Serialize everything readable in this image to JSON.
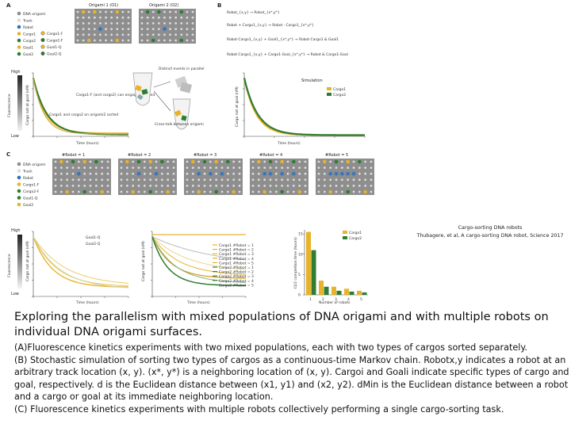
{
  "panel_a": {
    "letter": "A",
    "grid_titles": [
      "Origami 1 (O1)",
      "Origami 2 (O2)"
    ],
    "legend_left": [
      "DNA origami",
      "Track",
      "Robot",
      "Cargo1",
      "Cargo2",
      "Goal1",
      "Goal2"
    ],
    "legend_right": [
      "Cargo1-F",
      "Cargo2-F",
      "Goal1-Q",
      "Goal2-Q"
    ],
    "y_axis_label": "Cargo not at goal (nM)",
    "fluor_label": "Fluorescence",
    "fluor_high": "High",
    "fluor_low": "Low",
    "annot_1": "Cargo1-F (and cargo2) can engage & sorted",
    "annot_2": "Cargo1 and cargo2 on origami2 sorted",
    "annot_tube_1": "Distinct events in parallel",
    "annot_tube_2": "Cross-talk between origami",
    "xlabel": "Time (hours)"
  },
  "panel_b": {
    "letter": "B",
    "equations": [
      "Robot_{x,y} → Robot_{x*,y*}",
      "Robot + Cargo1_{x,y} → Robot · Cargo1_{x*,y*}",
      "Robot·Cargo1_{x,y} + Goal1_{x*,y*} → Robot·Cargo1 & Goal1",
      "Robot·Cargo1_{x,y} + Cargo1·Goal_{x*,y*} → Robot & Cargo1·Goal"
    ],
    "sim_label": "Simulation",
    "legend": [
      "Cargo1",
      "Cargo2"
    ],
    "ylabel": "Cargo not at goal (nM)",
    "xlabel": "Time (hours)"
  },
  "panel_c": {
    "letter": "C",
    "legend": [
      "DNA origami",
      "Track",
      "Robot",
      "Cargo1-F",
      "Cargo2-F",
      "Goal1-Q",
      "Goal2"
    ],
    "grid_titles": [
      "#Robot = 1",
      "#Robot = 2",
      "#Robot = 3",
      "#Robot = 4",
      "#Robot = 5"
    ],
    "fluor_label": "Fluorescence",
    "fluor_high": "High",
    "fluor_low": "Low",
    "left_plot_legend": [
      "Goal1-Q",
      "Goal2-Q"
    ],
    "mid_plot_legend": [
      "Cargo1 #Robot = 1",
      "Cargo1 #Robot = 2",
      "Cargo1 #Robot = 3",
      "Cargo1 #Robot = 4",
      "Cargo1 #Robot = 5",
      "Cargo2 #Robot = 1",
      "Cargo2 #Robot = 2",
      "Cargo2 #Robot = 3",
      "Cargo2 #Robot = 4",
      "Cargo2 #Robot = 5"
    ],
    "bar_legend": [
      "Cargo1",
      "Cargo2"
    ],
    "bar_ylabel": "t1/2 completion time (hours)",
    "bar_xlabel": "Number of robots",
    "bar_xticks": [
      "1",
      "2",
      "3",
      "4",
      "5"
    ],
    "bar_yticks": [
      "0",
      "5",
      "10",
      "15"
    ],
    "ylabel": "Cargo not at goal (nM)",
    "xlabel": "Time (hours)"
  },
  "colors": {
    "cargo1": "#e8b32a",
    "cargo2": "#2e7d32",
    "robot": "#2d6fbf",
    "grid": "#8e8e8e",
    "track": "#dcdcdc"
  },
  "chart_data": [
    {
      "type": "bar",
      "title": "",
      "categories": [
        "1",
        "2",
        "3",
        "4",
        "5"
      ],
      "series": [
        {
          "name": "Cargo1",
          "values": [
            15.5,
            3.5,
            2.0,
            1.5,
            1.0
          ]
        },
        {
          "name": "Cargo2",
          "values": [
            11.0,
            2.0,
            1.0,
            0.8,
            0.6
          ]
        }
      ],
      "xlabel": "Number of robots",
      "ylabel": "t1/2 completion time (hours)",
      "ylim": [
        0,
        16
      ]
    }
  ],
  "credit": {
    "line1": "Cargo-sorting DNA robots",
    "line2": "Thubagere, et al, A cargo-sorting DNA robot, Science 2017"
  },
  "caption": {
    "title": "Exploring the parallelism with mixed populations of DNA origami and with multiple robots on individual DNA origami surfaces.",
    "para_a": "(A)Fluorescence kinetics experiments with two mixed populations, each with two types of cargos sorted separately.",
    "para_b": " (B) Stochastic simulation of sorting two types of cargos as a continuous-time Markov chain. Robotx,y indicates a robot at an arbitrary track location (x, y). (x*, y*) is a neighboring location of (x, y). Cargoi and Goali indicate specific types of cargo and goal, respectively. d is the Euclidean distance between (x1, y1) and (x2, y2). dMin is the Euclidean distance between a robot and a cargo or goal at its immediate neighboring location.",
    "para_c": " (C) Fluorescence kinetics experiments with multiple robots collectively performing a single cargo-sorting task."
  }
}
